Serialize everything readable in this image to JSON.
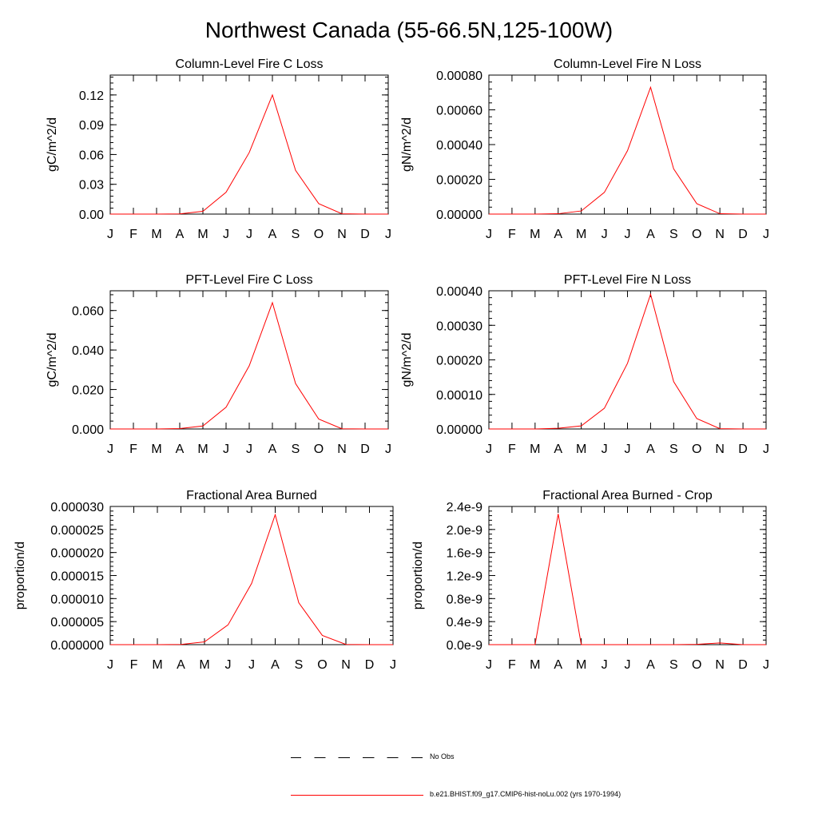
{
  "figure": {
    "title": "Northwest Canada (55-66.5N,125-100W)"
  },
  "legend": {
    "entries": [
      {
        "label": "No Obs",
        "style": "dashed",
        "color": "#000000"
      },
      {
        "label": "b.e21.BHIST.f09_g17.CMIP6-hist-noLu.002 (yrs 1970-1994)",
        "style": "solid",
        "color": "#ff0000"
      }
    ]
  },
  "colors": {
    "series": "#ff0000",
    "axis": "#000000"
  },
  "chart_data": [
    {
      "type": "line",
      "title": "Column-Level Fire C Loss",
      "ylabel": "gC/m^2/d",
      "xlabel": "",
      "categories": [
        "J",
        "F",
        "M",
        "A",
        "M",
        "J",
        "J",
        "A",
        "S",
        "O",
        "N",
        "D",
        "J"
      ],
      "ylim": [
        0,
        0.14
      ],
      "yticks": [
        0.0,
        0.03,
        0.06,
        0.09,
        0.12
      ],
      "ytick_labels": [
        "0.00",
        "0.03",
        "0.06",
        "0.09",
        "0.12"
      ],
      "series": [
        {
          "values": [
            0,
            0,
            0,
            0.0002,
            0.0028,
            0.022,
            0.062,
            0.12,
            0.044,
            0.0105,
            0.0003,
            0,
            0
          ]
        }
      ]
    },
    {
      "type": "line",
      "title": "Column-Level Fire N Loss",
      "ylabel": "gN/m^2/d",
      "xlabel": "",
      "categories": [
        "J",
        "F",
        "M",
        "A",
        "M",
        "J",
        "J",
        "A",
        "S",
        "O",
        "N",
        "D",
        "J"
      ],
      "ylim": [
        0,
        0.0008
      ],
      "yticks": [
        0,
        0.0002,
        0.0004,
        0.0006,
        0.0008
      ],
      "ytick_labels": [
        "0.00000",
        "0.00020",
        "0.00040",
        "0.00060",
        "0.00080"
      ],
      "series": [
        {
          "values": [
            0,
            0,
            0,
            2e-06,
            1.8e-05,
            0.000125,
            0.000365,
            0.00073,
            0.00026,
            6e-05,
            2e-06,
            0,
            0
          ]
        }
      ]
    },
    {
      "type": "line",
      "title": "PFT-Level Fire C Loss",
      "ylabel": "gC/m^2/d",
      "xlabel": "",
      "categories": [
        "J",
        "F",
        "M",
        "A",
        "M",
        "J",
        "J",
        "A",
        "S",
        "O",
        "N",
        "D",
        "J"
      ],
      "ylim": [
        0,
        0.07
      ],
      "yticks": [
        0,
        0.02,
        0.04,
        0.06
      ],
      "ytick_labels": [
        "0.000",
        "0.020",
        "0.040",
        "0.060"
      ],
      "series": [
        {
          "values": [
            0,
            0,
            0,
            0.0002,
            0.0015,
            0.011,
            0.032,
            0.064,
            0.023,
            0.005,
            0.0001,
            0,
            0
          ]
        }
      ]
    },
    {
      "type": "line",
      "title": "PFT-Level Fire N Loss",
      "ylabel": "gN/m^2/d",
      "xlabel": "",
      "categories": [
        "J",
        "F",
        "M",
        "A",
        "M",
        "J",
        "J",
        "A",
        "S",
        "O",
        "N",
        "D",
        "J"
      ],
      "ylim": [
        0,
        0.0004
      ],
      "yticks": [
        0,
        0.0001,
        0.0002,
        0.0003,
        0.0004
      ],
      "ytick_labels": [
        "0.00000",
        "0.00010",
        "0.00020",
        "0.00030",
        "0.00040"
      ],
      "series": [
        {
          "values": [
            0,
            0,
            0,
            2e-06,
            9e-06,
            6e-05,
            0.00019,
            0.00039,
            0.000137,
            3e-05,
            1e-06,
            0,
            0
          ]
        }
      ]
    },
    {
      "type": "line",
      "title": "Fractional Area Burned",
      "ylabel": "proportion/d",
      "xlabel": "",
      "categories": [
        "J",
        "F",
        "M",
        "A",
        "M",
        "J",
        "J",
        "A",
        "S",
        "O",
        "N",
        "D",
        "J"
      ],
      "ylim": [
        0,
        3e-05
      ],
      "yticks": [
        0,
        5e-06,
        1e-05,
        1.5e-05,
        2e-05,
        2.5e-05,
        3e-05
      ],
      "ytick_labels": [
        "0.000000",
        "0.000005",
        "0.000010",
        "0.000015",
        "0.000020",
        "0.000025",
        "0.000030"
      ],
      "series": [
        {
          "values": [
            0,
            0,
            0,
            5e-08,
            6e-07,
            4.3e-06,
            1.33e-05,
            2.82e-05,
            9.1e-06,
            2e-06,
            5e-08,
            0,
            0
          ]
        }
      ]
    },
    {
      "type": "line",
      "title": "Fractional Area Burned - Crop",
      "ylabel": "proportion/d",
      "xlabel": "",
      "categories": [
        "J",
        "F",
        "M",
        "A",
        "M",
        "J",
        "J",
        "A",
        "S",
        "O",
        "N",
        "D",
        "J"
      ],
      "ylim": [
        0,
        2.4e-09
      ],
      "yticks": [
        0,
        4e-10,
        8e-10,
        1.2e-09,
        1.6e-09,
        2e-09,
        2.4e-09
      ],
      "ytick_labels": [
        "0.0e-9",
        "0.4e-9",
        "0.8e-9",
        "1.2e-9",
        "1.6e-9",
        "2.0e-9",
        "2.4e-9"
      ],
      "series": [
        {
          "values": [
            0,
            0,
            0,
            2.27e-09,
            0,
            0,
            0,
            0,
            0,
            5e-12,
            3e-11,
            0,
            0
          ]
        }
      ]
    }
  ]
}
